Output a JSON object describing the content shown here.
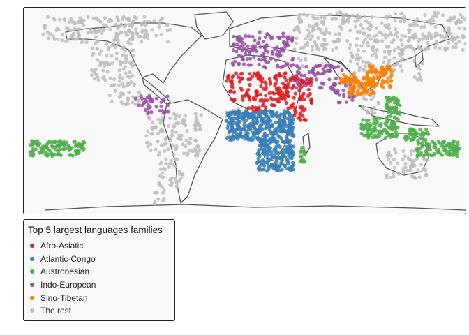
{
  "legend": {
    "title": "Top 5 largest languages families",
    "items": [
      {
        "label": "Afro-Asiatic",
        "color": "#e41a1c"
      },
      {
        "label": "Atlantic-Congo",
        "color": "#377eb8"
      },
      {
        "label": "Austronesian",
        "color": "#4daf4a"
      },
      {
        "label": "Indo-European",
        "color": "#984ea3"
      },
      {
        "label": "Sino-Tibetan",
        "color": "#ff7f00"
      },
      {
        "label": "The rest",
        "color": "#bdbdbd"
      }
    ]
  },
  "map": {
    "projection": "equirectangular",
    "background": "#f9f9f9",
    "outline_color": "#555555",
    "point_groups": [
      {
        "family": "The rest",
        "color": "#bdbdbd",
        "count": 900,
        "regions": [
          {
            "lon": [
              -165,
              -60
            ],
            "lat": [
              55,
              72
            ]
          },
          {
            "lon": [
              -125,
              -90
            ],
            "lat": [
              30,
              55
            ]
          },
          {
            "lon": [
              -110,
              -85
            ],
            "lat": [
              14,
              30
            ]
          },
          {
            "lon": [
              -80,
              -35
            ],
            "lat": [
              -20,
              8
            ]
          },
          {
            "lon": [
              -70,
              -50
            ],
            "lat": [
              -40,
              -20
            ]
          },
          {
            "lon": [
              -75,
              -65
            ],
            "lat": [
              -52,
              -40
            ]
          },
          {
            "lon": [
              115,
              150
            ],
            "lat": [
              -35,
              -15
            ]
          },
          {
            "lon": [
              40,
              180
            ],
            "lat": [
              50,
              75
            ]
          },
          {
            "lon": [
              85,
              130
            ],
            "lat": [
              35,
              50
            ]
          },
          {
            "lon": [
              95,
              110
            ],
            "lat": [
              8,
              22
            ]
          },
          {
            "lon": [
              138,
              146
            ],
            "lat": [
              30,
              43
            ]
          },
          {
            "lon": [
              -15,
              5
            ],
            "lat": [
              4,
              12
            ]
          },
          {
            "lon": [
              40,
              50
            ],
            "lat": [
              38,
              45
            ]
          }
        ]
      },
      {
        "family": "Indo-European",
        "color": "#984ea3",
        "count": 260,
        "regions": [
          {
            "lon": [
              -10,
              40
            ],
            "lat": [
              38,
              62
            ]
          },
          {
            "lon": [
              40,
              80
            ],
            "lat": [
              25,
              40
            ]
          },
          {
            "lon": [
              70,
              90
            ],
            "lat": [
              15,
              28
            ]
          },
          {
            "lon": [
              -80,
              -62
            ],
            "lat": [
              8,
              20
            ]
          },
          {
            "lon": [
              -90,
              -75
            ],
            "lat": [
              10,
              20
            ]
          }
        ]
      },
      {
        "family": "Afro-Asiatic",
        "color": "#e41a1c",
        "count": 220,
        "regions": [
          {
            "lon": [
              -15,
              35
            ],
            "lat": [
              15,
              35
            ]
          },
          {
            "lon": [
              0,
              25
            ],
            "lat": [
              8,
              14
            ]
          },
          {
            "lon": [
              35,
              50
            ],
            "lat": [
              3,
              15
            ]
          },
          {
            "lon": [
              35,
              55
            ],
            "lat": [
              15,
              32
            ]
          }
        ]
      },
      {
        "family": "Atlantic-Congo",
        "color": "#377eb8",
        "count": 520,
        "regions": [
          {
            "lon": [
              -15,
              40
            ],
            "lat": [
              -10,
              10
            ]
          },
          {
            "lon": [
              10,
              40
            ],
            "lat": [
              -30,
              -10
            ]
          },
          {
            "lon": [
              28,
              40
            ],
            "lat": [
              -5,
              5
            ]
          }
        ]
      },
      {
        "family": "Sino-Tibetan",
        "color": "#ff7f00",
        "count": 160,
        "regions": [
          {
            "lon": [
              85,
              105
            ],
            "lat": [
              20,
              32
            ]
          },
          {
            "lon": [
              100,
              120
            ],
            "lat": [
              25,
              40
            ]
          },
          {
            "lon": [
              78,
              92
            ],
            "lat": [
              28,
              34
            ]
          }
        ]
      },
      {
        "family": "Austronesian",
        "color": "#4daf4a",
        "count": 420,
        "regions": [
          {
            "lon": [
              95,
              125
            ],
            "lat": [
              -8,
              5
            ]
          },
          {
            "lon": [
              115,
              127
            ],
            "lat": [
              5,
              20
            ]
          },
          {
            "lon": [
              130,
              150
            ],
            "lat": [
              -10,
              -2
            ]
          },
          {
            "lon": [
              140,
              175
            ],
            "lat": [
              -20,
              -10
            ]
          },
          {
            "lon": [
              -175,
              -130
            ],
            "lat": [
              -20,
              -10
            ]
          },
          {
            "lon": [
              44,
              50
            ],
            "lat": [
              -24,
              -14
            ]
          }
        ]
      }
    ]
  }
}
